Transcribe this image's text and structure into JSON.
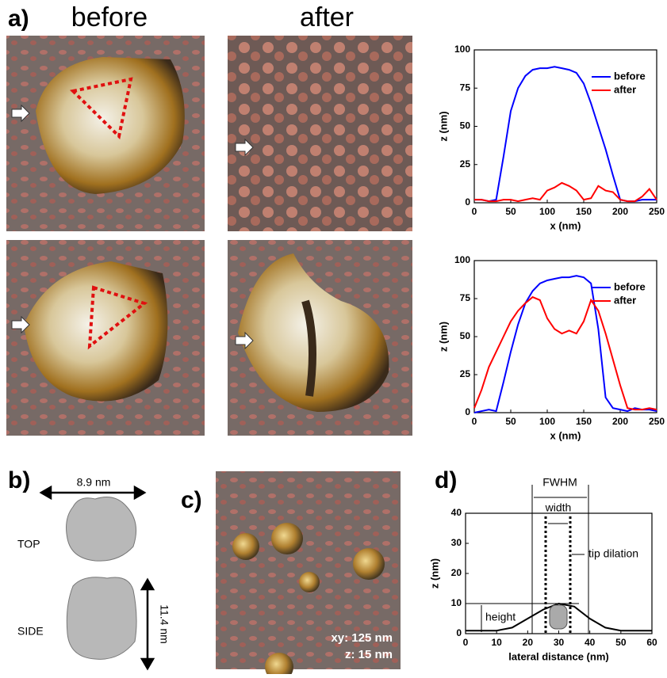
{
  "panel_labels": [
    "a)",
    "b)",
    "c)",
    "d)"
  ],
  "column_headers": [
    "before",
    "after"
  ],
  "molecule_views": [
    "TOP",
    "SIDE"
  ],
  "dimensions": [
    "8.9 nm",
    "11.4 nm"
  ],
  "scale_note": [
    "xy: 125 nm",
    "z: 15 nm"
  ],
  "chart_data": [
    {
      "type": "line",
      "xlabel": "x (nm)",
      "ylabel": "z (nm)",
      "x": [
        0,
        10,
        20,
        30,
        40,
        50,
        60,
        70,
        80,
        90,
        100,
        110,
        120,
        130,
        140,
        150,
        160,
        170,
        180,
        190,
        200,
        210,
        220,
        230,
        240,
        250
      ],
      "series": [
        {
          "name": "before",
          "color": "#0000ff",
          "values": [
            2,
            2,
            1,
            2,
            30,
            60,
            75,
            83,
            87,
            88,
            88,
            89,
            88,
            87,
            85,
            78,
            65,
            50,
            35,
            18,
            2,
            1,
            1,
            2,
            2,
            2
          ]
        },
        {
          "name": "after",
          "color": "#ff0000",
          "values": [
            2,
            2,
            1,
            1,
            2,
            2,
            1,
            2,
            3,
            2,
            8,
            10,
            13,
            11,
            8,
            2,
            3,
            11,
            8,
            7,
            2,
            1,
            1,
            4,
            9,
            2
          ]
        }
      ],
      "xlim": [
        0,
        250
      ],
      "xticks": [
        0,
        50,
        100,
        150,
        200,
        250
      ],
      "ylim": [
        0,
        100
      ],
      "yticks": [
        0,
        25,
        50,
        75,
        100
      ]
    },
    {
      "type": "line",
      "xlabel": "x (nm)",
      "ylabel": "z (nm)",
      "x": [
        0,
        10,
        20,
        30,
        40,
        50,
        60,
        70,
        80,
        90,
        100,
        110,
        120,
        130,
        140,
        150,
        160,
        170,
        180,
        190,
        200,
        210,
        220,
        230,
        240,
        250
      ],
      "series": [
        {
          "name": "before",
          "color": "#0000ff",
          "values": [
            0,
            1,
            2,
            1,
            20,
            40,
            58,
            72,
            80,
            85,
            87,
            88,
            89,
            89,
            90,
            89,
            85,
            55,
            10,
            3,
            2,
            1,
            3,
            2,
            2,
            1
          ]
        },
        {
          "name": "after",
          "color": "#ff0000",
          "values": [
            3,
            15,
            30,
            40,
            50,
            60,
            67,
            72,
            76,
            74,
            62,
            55,
            52,
            54,
            52,
            60,
            74,
            67,
            52,
            35,
            18,
            3,
            2,
            2,
            3,
            2
          ]
        }
      ],
      "xlim": [
        0,
        250
      ],
      "xticks": [
        0,
        50,
        100,
        150,
        200,
        250
      ],
      "ylim": [
        0,
        100
      ],
      "yticks": [
        0,
        25,
        50,
        75,
        100
      ]
    },
    {
      "type": "line",
      "xlabel": "lateral distance  (nm)",
      "ylabel": "z (nm)",
      "x": [
        0,
        5,
        10,
        15,
        20,
        25,
        30,
        35,
        40,
        45,
        50,
        55,
        60
      ],
      "series": [
        {
          "color": "#000000",
          "values": [
            1,
            1,
            1,
            2,
            5,
            8,
            10,
            9,
            5,
            2,
            1,
            1,
            1
          ]
        }
      ],
      "xlim": [
        0,
        60
      ],
      "xticks": [
        0,
        10,
        20,
        30,
        40,
        50,
        60
      ],
      "ylim": [
        0,
        40
      ],
      "yticks": [
        0,
        10,
        20,
        30,
        40
      ],
      "annotations": [
        "FWHM",
        "width",
        "tip dilation",
        "height"
      ]
    }
  ]
}
